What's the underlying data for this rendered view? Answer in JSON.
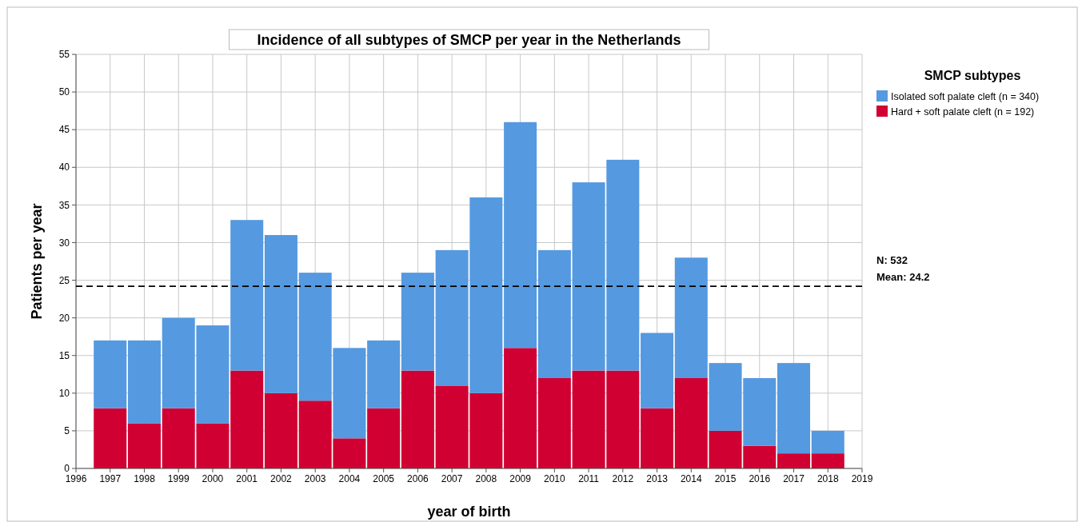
{
  "chart_data": {
    "type": "bar",
    "title": "Incidence of all subtypes of SMCP per year in the Netherlands",
    "xlabel": "year of birth",
    "ylabel": "Patients per year",
    "legend_title": "SMCP subtypes",
    "stacked": true,
    "x": [
      1997,
      1998,
      1999,
      2000,
      2001,
      2002,
      2003,
      2004,
      2005,
      2006,
      2007,
      2008,
      2009,
      2010,
      2011,
      2012,
      2013,
      2014,
      2015,
      2016,
      2017,
      2018
    ],
    "series": [
      {
        "name": "Hard + soft palate cleft (n = 192)",
        "color": "#d10032",
        "values": [
          8,
          6,
          8,
          6,
          13,
          10,
          9,
          4,
          8,
          13,
          11,
          10,
          16,
          12,
          13,
          13,
          8,
          12,
          5,
          3,
          2,
          2
        ]
      },
      {
        "name": "Isolated soft palate cleft (n = 340)",
        "color": "#5599e0",
        "values": [
          9,
          11,
          12,
          13,
          20,
          21,
          17,
          12,
          9,
          13,
          18,
          26,
          30,
          17,
          25,
          28,
          10,
          16,
          9,
          9,
          12,
          3
        ]
      }
    ],
    "xlim": [
      1996,
      2019
    ],
    "xticks": [
      1996,
      1997,
      1998,
      1999,
      2000,
      2001,
      2002,
      2003,
      2004,
      2005,
      2006,
      2007,
      2008,
      2009,
      2010,
      2011,
      2012,
      2013,
      2014,
      2015,
      2016,
      2017,
      2018,
      2019
    ],
    "ylim": [
      0,
      55
    ],
    "yticks": [
      0,
      5,
      10,
      15,
      20,
      25,
      30,
      35,
      40,
      45,
      50,
      55
    ],
    "ref_lines": [
      {
        "axis": "y",
        "value": 24.2,
        "label": "Mean: 24.2",
        "color": "#000000",
        "line_style": "dashed"
      }
    ],
    "annotations": [
      "N: 532"
    ],
    "grid": true,
    "legend": "top right"
  }
}
